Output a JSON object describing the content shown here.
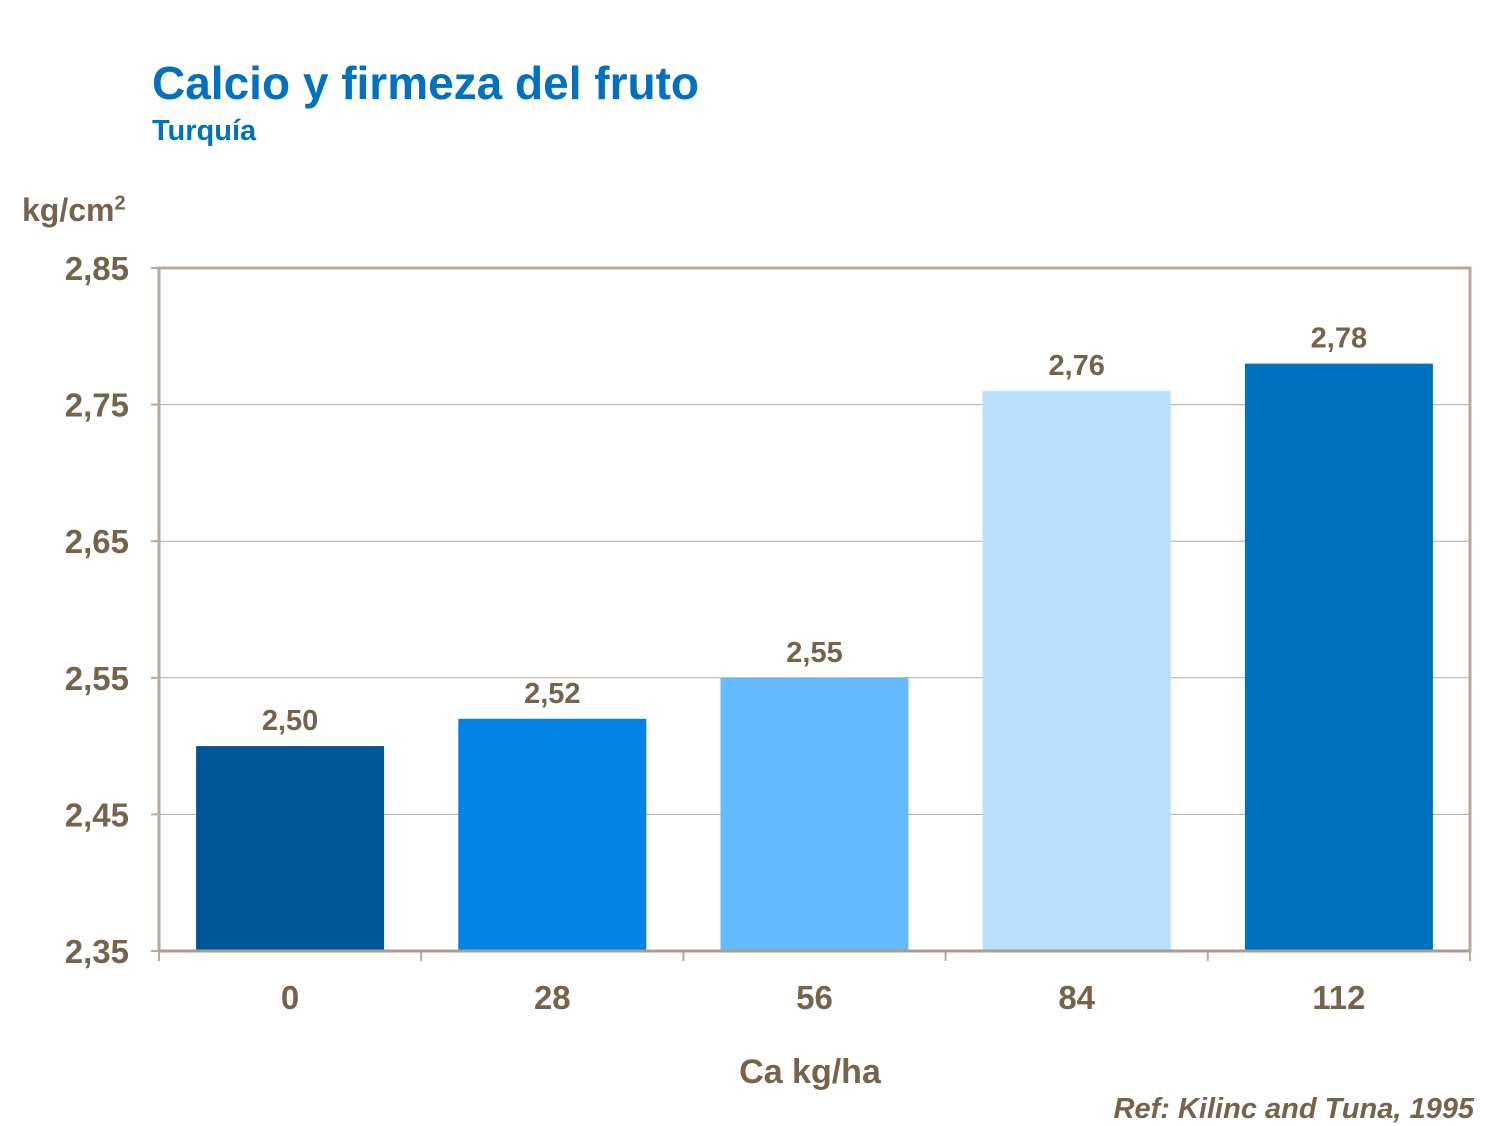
{
  "chart_data": {
    "type": "bar",
    "title": "Calcio y firmeza del fruto",
    "subtitle": "Turquía",
    "ylabel": "kg/cm",
    "ylabel_superscript": "2",
    "xlabel": "Ca kg/ha",
    "categories": [
      "0",
      "28",
      "56",
      "84",
      "112"
    ],
    "values": [
      2.5,
      2.52,
      2.55,
      2.76,
      2.78
    ],
    "data_labels": [
      "2,50",
      "2,52",
      "2,55",
      "2,76",
      "2,78"
    ],
    "bar_colors": [
      "#005597",
      "#0082e6",
      "#66bbff",
      "#b8dfff",
      "#0070c0"
    ],
    "ylim": [
      2.35,
      2.85
    ],
    "yticks": [
      2.35,
      2.45,
      2.55,
      2.65,
      2.75,
      2.85
    ],
    "ytick_labels": [
      "2,35",
      "2,45",
      "2,55",
      "2,65",
      "2,75",
      "2,85"
    ],
    "grid": true,
    "legend": "none",
    "reference": "Ref: Kilinc and Tuna, 1995"
  }
}
